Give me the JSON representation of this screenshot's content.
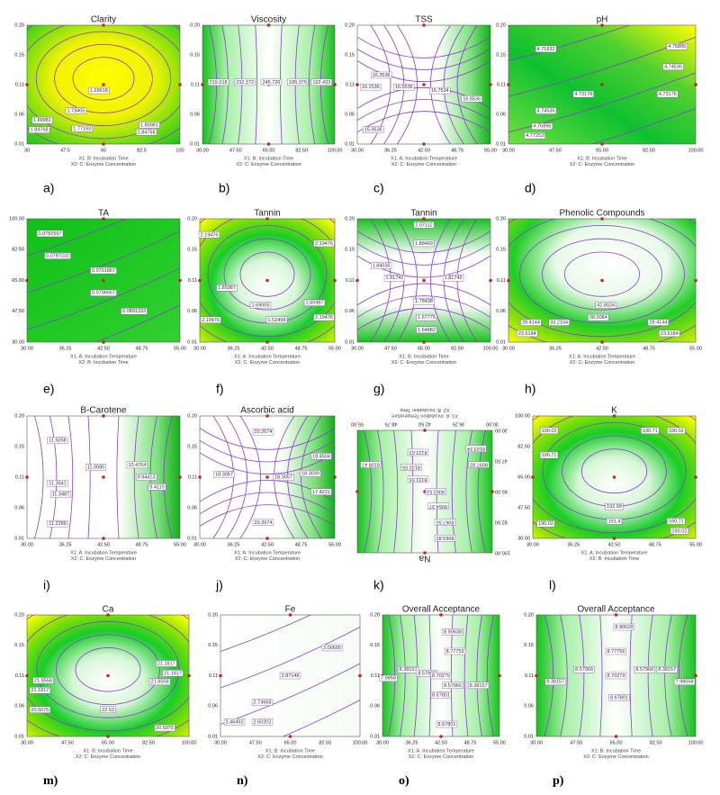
{
  "figure": {
    "panels": [
      {
        "letter": "a)",
        "title": "Clarity",
        "xticks": [
          "30",
          "47.5",
          "65",
          "82.5",
          "100"
        ],
        "yticks": [
          "0.20",
          "0.15",
          "0.11",
          "0.06",
          "0.01"
        ],
        "xlabel": [
          "X1: B: Incubation Time",
          "X2: C: Enzyme Concentration"
        ],
        "contour_labels": [
          "1.69618",
          "1.73405",
          "1.77193",
          "1.80981",
          "1.84768",
          "1.80981",
          "1.84768"
        ]
      },
      {
        "letter": "b)",
        "title": "Viscosity",
        "xticks": [
          "30.00",
          "47.50",
          "65.00",
          "82.50",
          "100.00"
        ],
        "yticks": [
          "0.20",
          "0.15",
          "0.11",
          "0.06",
          "0.01"
        ],
        "xlabel": [
          "X1: B: Incubation Time",
          "X2: C: Enzyme Concentration"
        ],
        "contour_labels": [
          "219.018",
          "232.372",
          "245.726",
          "189.379",
          "192.433"
        ]
      },
      {
        "letter": "c)",
        "title": "TSS",
        "xticks": [
          "30.00",
          "36.25",
          "42.50",
          "48.75",
          "55.00"
        ],
        "yticks": [
          "0.20",
          "0.15",
          "0.11",
          "0.06",
          "0.01"
        ],
        "xlabel": [
          "X1: A: Incubation Temperature",
          "X2: C: Enzyme Concentration"
        ],
        "contour_labels": [
          "16.3536",
          "16.1536",
          "16.5536",
          "16.7534",
          "16.5536",
          "15.9536"
        ]
      },
      {
        "letter": "d)",
        "title": "pH",
        "xticks": [
          "30.00",
          "47.50",
          "65.00",
          "82.50",
          "100.00"
        ],
        "yticks": [
          "0.20",
          "0.15",
          "0.11",
          "0.06",
          "0.01"
        ],
        "xlabel": [
          "X1: B: Incubation Time",
          "X2: C: Enzyme Concentration"
        ],
        "contour_labels": [
          "4.71832",
          "4.75895",
          "4.74536",
          "4.73176",
          "4.73178",
          "4.74536",
          "4.76895",
          "4.77253"
        ]
      },
      {
        "letter": "e)",
        "title": "TA",
        "xticks": [
          "30.00",
          "36.25",
          "42.50",
          "48.75",
          "55.00"
        ],
        "yticks": [
          "100.00",
          "82.50",
          "65.00",
          "47.50",
          "30.00"
        ],
        "xlabel": [
          "X1: A: Incubation Temperature",
          "X2: B: Incubation Time"
        ],
        "contour_labels": [
          "0.0782597",
          "0.0787232",
          "0.0791867",
          "0.0796667",
          "0.0801333"
        ]
      },
      {
        "letter": "f)",
        "title": "Tannin",
        "xticks": [
          "30.00",
          "36.25",
          "42.50",
          "48.75",
          "55.00"
        ],
        "yticks": [
          "0.20",
          "0.15",
          "0.11",
          "0.06",
          "0.01"
        ],
        "xlabel": [
          "X1: A: Incubation Temperature",
          "X2: C: Enzyme Concentration"
        ],
        "contour_labels": [
          "2.19476",
          "2.19476",
          "1.85987",
          "1.69005",
          "1.52498",
          "1.85987",
          "2.19476",
          "2.19476"
        ]
      },
      {
        "letter": "g)",
        "title": "Tannin",
        "xticks": [
          "30.00",
          "47.50",
          "65.00",
          "82.50",
          "100.00"
        ],
        "yticks": [
          "0.20",
          "0.15",
          "0.11",
          "0.06",
          "0.01"
        ],
        "xlabel": [
          "X1: B: Incubation Time",
          "X2: C: Enzyme Concentration"
        ],
        "contour_labels": [
          "2.07112",
          "1.88469",
          "1.84035",
          "1.81742",
          "1.81742",
          "1.78438",
          "1.67775",
          "1.64882"
        ]
      },
      {
        "letter": "h)",
        "title": "Phenolic Compounds",
        "xticks": [
          "30.00",
          "36.25",
          "42.50",
          "48.75",
          "55.00"
        ],
        "yticks": [
          "0.20",
          "0.15",
          "0.11",
          "0.06",
          "0.01"
        ],
        "xlabel": [
          "X1: A: Incubation Temperature",
          "X2: C: Enzyme Concentration"
        ],
        "contour_labels": [
          "42.8024",
          "38.0084",
          "28.4144",
          "33.2104",
          "28.4144",
          "23.6184",
          "23.6184"
        ]
      },
      {
        "letter": "i)",
        "title": "B-Carotene",
        "xticks": [
          "30.00",
          "36.25",
          "42.50",
          "48.75",
          "55.00"
        ],
        "yticks": [
          "0.20",
          "0.15",
          "0.11",
          "0.06",
          "0.01"
        ],
        "xlabel": [
          "X1: A: Incubation Temperature",
          "X2: C: Enzyme Concentration"
        ],
        "contour_labels": [
          "11.5058",
          "11.0085",
          "10.4764",
          "9.94413",
          "9.4119",
          "11.3941",
          "11.3487",
          "11.2289"
        ]
      },
      {
        "letter": "j)",
        "title": "Ascorbic acid",
        "xticks": [
          "30.00",
          "36.25",
          "42.50",
          "48.75",
          "55.00"
        ],
        "yticks": [
          "0.20",
          "0.15",
          "0.11",
          "0.06",
          "0.01"
        ],
        "xlabel": [
          "X1: A: Incubation Temperature",
          "X2: C: Enzyme Concentration"
        ],
        "contour_labels": [
          "20.2674",
          "18.3057",
          "18.3057",
          "18.3039",
          "18.4504",
          "17.4222",
          "20.2674"
        ]
      },
      {
        "letter": "k)",
        "title": "Na",
        "xticks": [
          "30.00",
          "36.25",
          "42.50",
          "48.75",
          "55.00"
        ],
        "yticks": [
          "100.00",
          "82.50",
          "65.00",
          "47.50",
          "30.00"
        ],
        "xlabel": [
          "X1: A: Incubation Temperature",
          "X2: B: Incubation Time"
        ],
        "contour_labels": [
          "8069.82",
          "8067.55",
          "8064.37",
          "8062.53",
          "8131.55",
          "8132.55",
          "8122.02",
          "8097.82",
          "8108.47",
          "8103.24"
        ]
      },
      {
        "letter": "l)",
        "title": "K",
        "xticks": [
          "30.00",
          "36.25",
          "42.50",
          "48.75",
          "55.00"
        ],
        "yticks": [
          "100.00",
          "82.50",
          "65.00",
          "47.50",
          "30.00"
        ],
        "xlabel": [
          "X1: A: Incubation Temperature",
          "X2: B: Incubation Time"
        ],
        "contour_labels": [
          "190.02",
          "190.71",
          "190.71",
          "190.02",
          "190.02",
          "192.09",
          "191.4",
          "190.71",
          "190.02"
        ]
      },
      {
        "letter": "m)",
        "title": "Ca",
        "xticks": [
          "30.00",
          "47.50",
          "65.00",
          "82.50",
          "100.00"
        ],
        "yticks": [
          "0.20",
          "0.15",
          "0.11",
          "0.06",
          "0.01"
        ],
        "xlabel": [
          "X1: B: Incubation Time",
          "X2: C: Enzyme Concentration"
        ],
        "contour_labels": [
          "21.1817",
          "21.8558",
          "21.1817",
          "20.5075",
          "21.8558",
          "21.1817",
          "22.53",
          "20.5075"
        ]
      },
      {
        "letter": "n)",
        "title": "Fe",
        "xticks": [
          "30.00",
          "47.50",
          "65.00",
          "82.50",
          "100.00"
        ],
        "yticks": [
          "0.20",
          "0.15",
          "0.11",
          "0.06",
          "0.01"
        ],
        "xlabel": [
          "X1: B: Incubation Time",
          "X2: C: Enzyme Concentration"
        ],
        "contour_labels": [
          "3.00605",
          "2.87148",
          "2.73668",
          "2.60202",
          "2.46492"
        ]
      },
      {
        "letter": "o)",
        "title": "Overall Acceptance",
        "xticks": [
          "30.00",
          "36.25",
          "42.50",
          "48.75",
          "55.00"
        ],
        "yticks": [
          "0.20",
          "0.15",
          "0.11",
          "0.06",
          "0.01"
        ],
        "xlabel": [
          "X1: A: Incubation Temperature",
          "X2: C: Enzyme Concentration"
        ],
        "contour_labels": [
          "8.90638",
          "8.77759",
          "8.38157",
          "8.57966",
          "8.70279",
          "8.57966",
          "8.38157",
          "8.67801",
          "8.67801",
          "7.9858"
        ]
      },
      {
        "letter": "p)",
        "title": "Overall Acceptance",
        "xticks": [
          "30.00",
          "47.50",
          "65.00",
          "82.50",
          "100.00"
        ],
        "yticks": [
          "0.20",
          "0.15",
          "0.11",
          "0.06",
          "0.01"
        ],
        "xlabel": [
          "X1: B: Incubation Time",
          "X2: C: Enzyme Concentration"
        ],
        "contour_labels": [
          "8.90628",
          "8.77756",
          "8.57966",
          "8.70279",
          "8.57966",
          "8.38157",
          "8.38157",
          "8.67801",
          "7.98558"
        ]
      }
    ]
  }
}
